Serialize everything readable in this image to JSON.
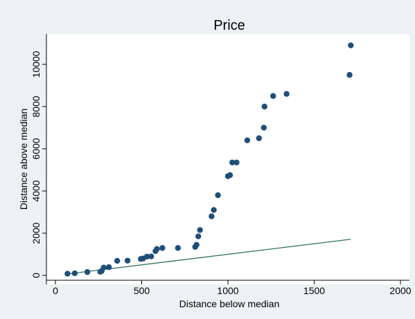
{
  "chart_data": {
    "type": "scatter",
    "title": "Price",
    "xlabel": "Distance below median",
    "ylabel": "Distance above median",
    "xlim": [
      0,
      2000
    ],
    "ylim": [
      0,
      11000
    ],
    "x_ticks": [
      0,
      500,
      1000,
      1500,
      2000
    ],
    "y_ticks": [
      0,
      2000,
      4000,
      6000,
      8000,
      10000
    ],
    "grid": false,
    "legend": "none",
    "colors": {
      "background": "#eaf2f3",
      "plot_area": "#ffffff",
      "marker": "#1f4e79",
      "line": "#2f6e5a"
    },
    "points": [
      [
        70,
        80
      ],
      [
        112,
        100
      ],
      [
        185,
        160
      ],
      [
        260,
        170
      ],
      [
        268,
        210
      ],
      [
        280,
        370
      ],
      [
        310,
        390
      ],
      [
        358,
        690
      ],
      [
        418,
        700
      ],
      [
        495,
        780
      ],
      [
        508,
        800
      ],
      [
        530,
        890
      ],
      [
        555,
        900
      ],
      [
        580,
        1150
      ],
      [
        588,
        1250
      ],
      [
        620,
        1300
      ],
      [
        710,
        1300
      ],
      [
        810,
        1350
      ],
      [
        818,
        1450
      ],
      [
        828,
        1850
      ],
      [
        838,
        2150
      ],
      [
        905,
        2800
      ],
      [
        918,
        3100
      ],
      [
        942,
        3800
      ],
      [
        1000,
        4700
      ],
      [
        1012,
        4750
      ],
      [
        1025,
        5350
      ],
      [
        1050,
        5350
      ],
      [
        1112,
        6400
      ],
      [
        1180,
        6500
      ],
      [
        1208,
        7000
      ],
      [
        1212,
        8000
      ],
      [
        1262,
        8500
      ],
      [
        1340,
        8600
      ],
      [
        1705,
        9500
      ],
      [
        1712,
        10900
      ]
    ],
    "reference_line": {
      "x": [
        70,
        1712
      ],
      "y": [
        70,
        1712
      ]
    }
  }
}
